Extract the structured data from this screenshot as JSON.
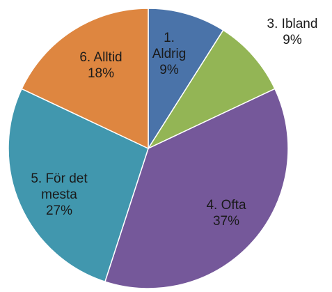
{
  "chart_data": {
    "type": "pie",
    "categories": [
      "1. Aldrig",
      "3. Ibland",
      "4. Ofta",
      "5. För det mesta",
      "6. Alltid"
    ],
    "values": [
      9,
      9,
      37,
      27,
      18
    ],
    "value_labels": [
      "9%",
      "9%",
      "37%",
      "27%",
      "18%"
    ],
    "colors": [
      "#4a73a9",
      "#93b555",
      "#75589a",
      "#4197ae",
      "#de8640"
    ]
  }
}
